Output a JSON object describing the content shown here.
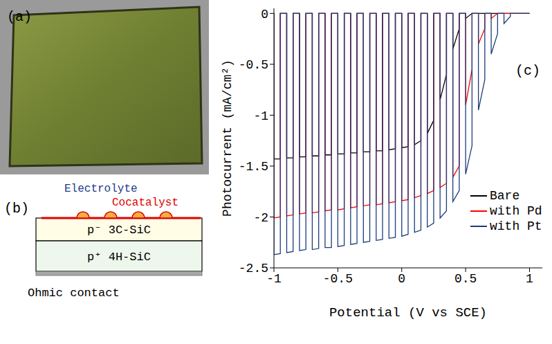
{
  "photo": {
    "label": "(a)"
  },
  "diagram": {
    "label": "(b)",
    "electrolyte": "Electrolyte",
    "cocatalyst": "Cocatalyst",
    "layers": [
      "p⁻ 3C-SiC",
      "p⁺ 4H-SiC"
    ],
    "contact": "Ohmic contact"
  },
  "chart_data": {
    "type": "line",
    "annotation": "(c)",
    "x_label": "Potential (V vs SCE)",
    "y_label": "Photocurrent (mA/cm²)",
    "xlim": [
      -1,
      1.1
    ],
    "xticks": [
      -1,
      -0.5,
      0,
      0.5,
      1
    ],
    "ylim": [
      -2.5,
      0.05
    ],
    "yticks": [
      0,
      -0.5,
      -1,
      -1.5,
      -2,
      -2.5
    ],
    "legend": "lower right",
    "x": [
      -1,
      -1,
      -0.95,
      -0.95,
      -0.9,
      -0.9,
      -0.85,
      -0.85,
      -0.8,
      -0.8,
      -0.75,
      -0.75,
      -0.7,
      -0.7,
      -0.65,
      -0.65,
      -0.6,
      -0.6,
      -0.55,
      -0.55,
      -0.5,
      -0.5,
      -0.45,
      -0.45,
      -0.4,
      -0.4,
      -0.35,
      -0.35,
      -0.3,
      -0.3,
      -0.25,
      -0.25,
      -0.2,
      -0.2,
      -0.15,
      -0.15,
      -0.1,
      -0.1,
      -0.05,
      -0.05,
      0,
      0,
      0.05,
      0.05,
      0.1,
      0.1,
      0.15,
      0.15,
      0.2,
      0.2,
      0.25,
      0.25,
      0.3,
      0.3,
      0.35,
      0.35,
      0.4,
      0.4,
      0.45,
      0.45,
      0.5,
      0.5,
      0.55,
      0.55,
      0.6,
      0.6,
      0.65,
      0.65,
      0.7,
      0.7,
      0.75,
      0.75,
      0.8,
      0.8,
      0.85,
      0.85,
      0.9,
      0.9,
      0.95,
      0.95,
      1,
      1
    ],
    "series": [
      {
        "name": "Bare",
        "color": "#000000",
        "line_style": "solid",
        "values": [
          0,
          -1.43,
          -1.43,
          0,
          0,
          -1.42,
          -1.42,
          0,
          0,
          -1.41,
          -1.41,
          0,
          0,
          -1.4,
          -1.4,
          0,
          0,
          -1.39,
          -1.39,
          0,
          0,
          -1.38,
          -1.38,
          0,
          0,
          -1.37,
          -1.37,
          0,
          0,
          -1.36,
          -1.36,
          0,
          0,
          -1.35,
          -1.35,
          0,
          0,
          -1.34,
          -1.33,
          0,
          0,
          -1.32,
          -1.31,
          0,
          0,
          -1.29,
          -1.25,
          0,
          0,
          -1.18,
          -1.05,
          0,
          0,
          -0.85,
          -0.6,
          0,
          0,
          -0.35,
          -0.15,
          0,
          0,
          -0.05,
          0,
          0,
          0,
          0,
          0,
          0,
          0,
          0,
          0,
          0,
          0,
          0,
          0,
          0,
          0,
          0,
          0,
          0,
          0,
          0
        ]
      },
      {
        "name": "with Pd",
        "color": "#ff0000",
        "line_style": "solid",
        "values": [
          0,
          -2.01,
          -2.0,
          0,
          0,
          -1.99,
          -1.98,
          0,
          0,
          -1.97,
          -1.96,
          0,
          0,
          -1.96,
          -1.95,
          0,
          0,
          -1.94,
          -1.93,
          0,
          0,
          -1.93,
          -1.92,
          0,
          0,
          -1.91,
          -1.9,
          0,
          0,
          -1.89,
          -1.88,
          0,
          0,
          -1.88,
          -1.87,
          0,
          0,
          -1.86,
          -1.85,
          0,
          0,
          -1.84,
          -1.83,
          0,
          0,
          -1.81,
          -1.79,
          0,
          0,
          -1.77,
          -1.74,
          0,
          0,
          -1.71,
          -1.67,
          0,
          0,
          -1.61,
          -1.5,
          0,
          0,
          -0.9,
          -0.55,
          0,
          0,
          -0.3,
          -0.15,
          0,
          0,
          -0.05,
          0,
          0,
          0,
          0,
          0,
          0,
          0,
          0,
          0,
          0,
          0,
          0
        ]
      },
      {
        "name": "with Pt",
        "color": "#1c3d7a",
        "line_style": "solid",
        "values": [
          0,
          -2.37,
          -2.36,
          0,
          0,
          -2.35,
          -2.34,
          0,
          0,
          -2.33,
          -2.32,
          0,
          0,
          -2.32,
          -2.31,
          0,
          0,
          -2.3,
          -2.3,
          0,
          0,
          -2.29,
          -2.28,
          0,
          0,
          -2.27,
          -2.26,
          0,
          0,
          -2.25,
          -2.24,
          0,
          0,
          -2.23,
          -2.22,
          0,
          0,
          -2.21,
          -2.2,
          0,
          0,
          -2.19,
          -2.17,
          0,
          0,
          -2.15,
          -2.13,
          0,
          0,
          -2.1,
          -2.06,
          0,
          0,
          -2.01,
          -1.94,
          0,
          0,
          -1.85,
          -1.74,
          0,
          0,
          -1.58,
          -1.3,
          0,
          0,
          -0.95,
          -0.65,
          0,
          0,
          -0.4,
          -0.2,
          0,
          0,
          -0.1,
          -0.03,
          0,
          0,
          0,
          0,
          0,
          0,
          0
        ]
      }
    ]
  }
}
